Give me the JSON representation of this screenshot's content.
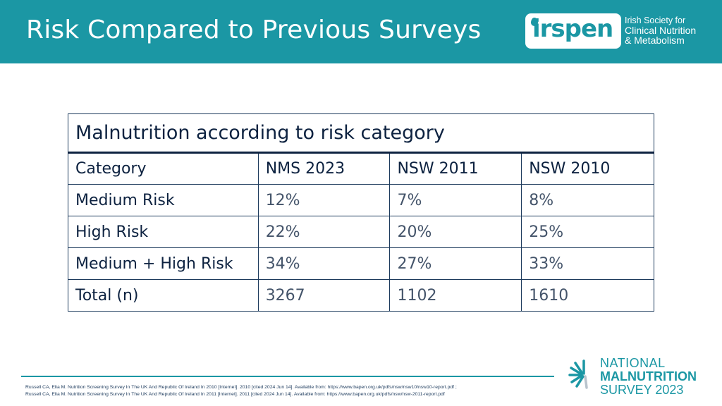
{
  "slide": {
    "title": "Risk Compared to Previous Surveys"
  },
  "logo": {
    "wordmark": "irspen",
    "line1": "Irish Society for",
    "line2": "Clinical Nutrition",
    "line3": "& Metabolism",
    "brand_color": "#1b97a4"
  },
  "table": {
    "caption": "Malnutrition according to risk category",
    "header": [
      "Category",
      "NMS 2023",
      "NSW 2011",
      "NSW 2010"
    ],
    "rows": [
      [
        "Medium Risk",
        "12%",
        "7%",
        "8%"
      ],
      [
        "High Risk",
        "22%",
        "20%",
        "25%"
      ],
      [
        "Medium + High Risk",
        "34%",
        "27%",
        "33%"
      ],
      [
        "Total (n)",
        "3267",
        "1102",
        "1610"
      ]
    ]
  },
  "references": [
    "Russell CA, Elia M. Nutrition Screening Survey In The UK And Republic Of Ireland In 2010 [Internet]. 2010 [cited 2024 Jun 14]. Available from: https://www.bapen.org.uk/pdfs/nsw/nsw10/nsw10-report.pdf ;",
    "Russell CA, Elia M. Nutrition Screening Survey In The UK And Republic Of Ireland In 2011 [Internet]. 2011 [cited 2024 Jun 14]. Available from: https://www.bapen.org.uk/pdfs/nsw/nsw-2011-report.pdf"
  ],
  "survey_logo": {
    "line1": "NATIONAL",
    "line2": "MALNUTRITION",
    "line3": "SURVEY 2023"
  }
}
